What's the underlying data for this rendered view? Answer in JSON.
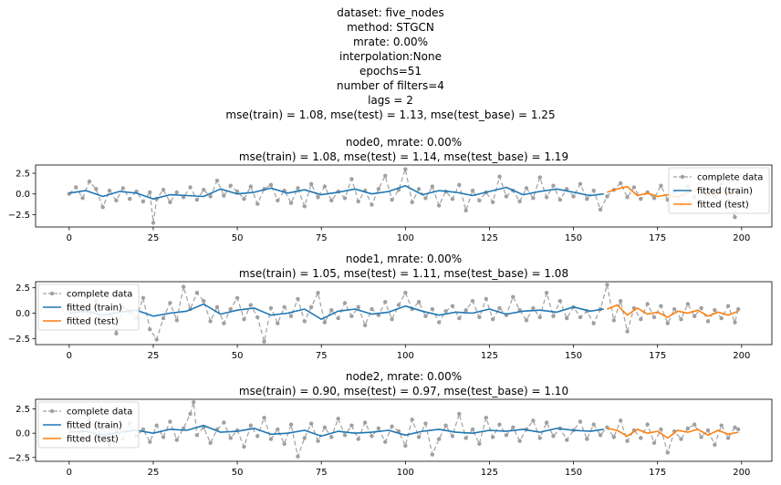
{
  "figure_title": [
    "dataset: five_nodes",
    "method: STGCN",
    "mrate: 0.00%",
    "interpolation:None",
    "epochs=51",
    "number of filters=4",
    "lags = 2",
    "mse(train) = 1.08, mse(test) = 1.13, mse(test_base) = 1.25"
  ],
  "colors": {
    "complete": "#a0a0a0",
    "train": "#1f77b4",
    "test": "#ff7f0e"
  },
  "chart_data": [
    {
      "type": "line",
      "title": [
        "node0, mrate: 0.00%",
        "mse(train) = 1.08, mse(test) = 1.14, mse(test_base) = 1.19"
      ],
      "xlim": [
        -10,
        209
      ],
      "ylim": [
        -4,
        3.5
      ],
      "xticks": [
        0,
        25,
        50,
        75,
        100,
        125,
        150,
        175,
        200
      ],
      "yticks": [
        2.5,
        0.0,
        -2.5
      ],
      "ytick_labels": [
        "2.5",
        "0.0",
        "−2.5"
      ],
      "legend": {
        "loc": "upper right",
        "labels": [
          "complete data",
          "fitted (train)",
          "fitted (test)"
        ]
      },
      "series": [
        {
          "name": "complete data",
          "style": "dashed-marker",
          "x": [
            0,
            2,
            4,
            6,
            8,
            10,
            12,
            14,
            16,
            18,
            20,
            22,
            24,
            25,
            26,
            28,
            30,
            32,
            34,
            36,
            38,
            40,
            42,
            44,
            46,
            48,
            50,
            52,
            54,
            56,
            58,
            60,
            62,
            64,
            66,
            68,
            70,
            72,
            74,
            76,
            78,
            80,
            82,
            84,
            86,
            88,
            90,
            92,
            94,
            96,
            98,
            100,
            102,
            104,
            106,
            108,
            110,
            112,
            114,
            116,
            118,
            120,
            122,
            124,
            126,
            128,
            130,
            132,
            134,
            136,
            138,
            140,
            142,
            144,
            146,
            148,
            150,
            152,
            154,
            156,
            158,
            160,
            162,
            164,
            166,
            168,
            170,
            172,
            174,
            176,
            178,
            180,
            182,
            184,
            186,
            188,
            190,
            192,
            194,
            196,
            198,
            199
          ],
          "y": [
            0.0,
            0.8,
            -0.5,
            1.5,
            0.6,
            -1.6,
            0.4,
            -0.8,
            0.7,
            -0.6,
            0.3,
            -0.9,
            0.2,
            -3.5,
            -0.6,
            0.5,
            -1.0,
            0.2,
            -0.4,
            0.8,
            -0.7,
            0.5,
            -0.3,
            1.6,
            -0.2,
            1.0,
            0.3,
            -0.6,
            0.9,
            -1.2,
            0.6,
            1.1,
            -0.8,
            0.4,
            -1.1,
            0.7,
            -1.5,
            1.2,
            -0.4,
            0.9,
            -0.8,
            0.3,
            -0.5,
            1.8,
            -0.9,
            0.4,
            -1.3,
            0.6,
            2.2,
            -0.7,
            0.5,
            3.0,
            -1.0,
            0.6,
            -0.5,
            0.9,
            -1.4,
            0.3,
            -0.6,
            1.1,
            -2.0,
            0.4,
            -0.8,
            0.2,
            -1.0,
            2.1,
            -0.3,
            0.4,
            -0.9,
            0.7,
            -0.5,
            2.0,
            -0.4,
            1.0,
            -0.7,
            0.6,
            -0.3,
            1.2,
            -0.6,
            0.4,
            -1.9,
            -0.3,
            0.5,
            1.3,
            -0.4,
            0.8,
            -0.6,
            0.2,
            -0.5,
            1.0,
            -0.7,
            0.3,
            -1.2,
            0.9,
            -0.4,
            -1.5,
            0.4,
            -0.3,
            1.2,
            -0.8,
            -2.8,
            0.3
          ]
        },
        {
          "name": "fitted (train)",
          "style": "solid",
          "x": [
            0,
            5,
            10,
            15,
            20,
            25,
            30,
            35,
            40,
            45,
            50,
            55,
            60,
            65,
            70,
            75,
            80,
            85,
            90,
            95,
            100,
            105,
            110,
            115,
            120,
            125,
            130,
            135,
            140,
            145,
            150,
            155,
            159
          ],
          "y": [
            0.1,
            0.4,
            -0.3,
            0.3,
            0.1,
            -0.6,
            -0.1,
            -0.2,
            -0.3,
            0.6,
            0.0,
            0.2,
            0.7,
            0.1,
            0.5,
            -0.1,
            0.2,
            0.6,
            0.0,
            0.3,
            1.0,
            -0.1,
            0.4,
            0.2,
            -0.2,
            0.3,
            0.8,
            -0.1,
            0.3,
            0.6,
            0.2,
            -0.2,
            0.0
          ]
        },
        {
          "name": "fitted (test)",
          "style": "solid",
          "x": [
            160,
            163,
            166,
            169,
            172,
            175,
            178,
            181,
            184,
            187,
            190,
            193,
            196,
            199
          ],
          "y": [
            0.2,
            0.6,
            0.9,
            -0.2,
            0.1,
            -0.3,
            -0.1,
            -0.4,
            0.2,
            0.5,
            -0.2,
            0.3,
            0.1,
            0.3
          ]
        }
      ]
    },
    {
      "type": "line",
      "title": [
        "node1, mrate: 0.00%",
        "mse(train) = 1.05, mse(test) = 1.11, mse(test_base) = 1.08"
      ],
      "xlim": [
        -10,
        209
      ],
      "ylim": [
        -3.1,
        3.1
      ],
      "xticks": [
        0,
        25,
        50,
        75,
        100,
        125,
        150,
        175,
        200
      ],
      "yticks": [
        2.5,
        0.0,
        -2.5
      ],
      "ytick_labels": [
        "2.5",
        "0.0",
        "−2.5"
      ],
      "legend": {
        "loc": "upper left",
        "labels": [
          "complete data",
          "fitted (train)",
          "fitted (test)"
        ]
      },
      "series": [
        {
          "name": "complete data",
          "style": "dashed-marker",
          "x": [
            0,
            2,
            4,
            6,
            8,
            10,
            12,
            14,
            16,
            18,
            20,
            22,
            24,
            26,
            28,
            30,
            32,
            34,
            36,
            38,
            40,
            42,
            44,
            46,
            48,
            50,
            52,
            54,
            56,
            58,
            60,
            62,
            64,
            66,
            68,
            70,
            72,
            74,
            76,
            78,
            80,
            82,
            84,
            86,
            88,
            90,
            92,
            94,
            96,
            98,
            100,
            102,
            104,
            106,
            108,
            110,
            112,
            114,
            116,
            118,
            120,
            122,
            124,
            126,
            128,
            130,
            132,
            134,
            136,
            138,
            140,
            142,
            144,
            146,
            148,
            150,
            152,
            154,
            156,
            158,
            160,
            162,
            164,
            166,
            168,
            170,
            172,
            174,
            176,
            178,
            180,
            182,
            184,
            186,
            188,
            190,
            192,
            194,
            196,
            198,
            199
          ],
          "y": [
            0.3,
            -0.4,
            0.8,
            -0.6,
            1.2,
            -0.9,
            0.5,
            -2.0,
            0.6,
            0.2,
            -0.5,
            1.5,
            -1.6,
            -2.6,
            -0.5,
            1.0,
            -0.7,
            2.6,
            0.4,
            2.0,
            1.2,
            -0.8,
            0.6,
            -1.0,
            0.4,
            1.5,
            -0.6,
            0.8,
            -0.4,
            -2.8,
            0.5,
            -1.0,
            0.6,
            -0.3,
            1.4,
            -0.8,
            0.6,
            2.0,
            -0.9,
            0.3,
            -0.5,
            1.0,
            -0.3,
            0.6,
            -1.2,
            0.4,
            -0.2,
            1.1,
            -0.6,
            0.8,
            2.0,
            0.4,
            1.1,
            -0.3,
            0.4,
            -0.9,
            0.2,
            0.7,
            -0.5,
            0.3,
            1.2,
            -0.4,
            1.4,
            -0.6,
            0.5,
            -0.2,
            1.6,
            0.3,
            -0.7,
            0.5,
            -0.4,
            2.0,
            -0.3,
            1.2,
            -0.5,
            0.6,
            -0.4,
            0.2,
            -1.0,
            0.4,
            2.8,
            -0.7,
            1.2,
            -1.8,
            0.5,
            -0.6,
            0.9,
            -0.4,
            0.7,
            -1.0,
            0.4,
            -0.6,
            0.9,
            -0.3,
            0.5,
            -0.8,
            0.3,
            -0.5,
            0.7,
            -0.9,
            0.4
          ]
        },
        {
          "name": "fitted (train)",
          "style": "solid",
          "x": [
            0,
            5,
            10,
            15,
            20,
            25,
            30,
            35,
            40,
            45,
            50,
            55,
            60,
            65,
            70,
            75,
            80,
            85,
            90,
            95,
            100,
            105,
            110,
            115,
            120,
            125,
            130,
            135,
            140,
            145,
            150,
            155,
            159
          ],
          "y": [
            0.0,
            0.2,
            -0.2,
            0.1,
            0.3,
            -0.3,
            0.0,
            0.2,
            0.9,
            -0.1,
            0.3,
            0.5,
            -0.2,
            0.0,
            0.4,
            -0.6,
            0.2,
            0.4,
            -0.1,
            0.1,
            0.7,
            0.2,
            -0.2,
            0.1,
            0.0,
            0.4,
            -0.1,
            0.2,
            0.3,
            0.1,
            0.6,
            0.2,
            0.4
          ]
        },
        {
          "name": "fitted (test)",
          "style": "solid",
          "x": [
            160,
            163,
            166,
            169,
            172,
            175,
            178,
            181,
            184,
            187,
            190,
            193,
            196,
            199
          ],
          "y": [
            0.4,
            0.8,
            -0.2,
            0.5,
            -0.1,
            0.1,
            -0.4,
            0.2,
            0.0,
            0.3,
            -0.3,
            0.1,
            -0.2,
            0.2
          ]
        }
      ]
    },
    {
      "type": "line",
      "title": [
        "node2, mrate: 0.00%",
        "mse(train) = 0.90, mse(test) = 0.97, mse(test_base) = 1.10"
      ],
      "xlim": [
        -10,
        209
      ],
      "ylim": [
        -2.9,
        3.5
      ],
      "xticks": [
        0,
        25,
        50,
        75,
        100,
        125,
        150,
        175,
        200
      ],
      "yticks": [
        2.5,
        0.0,
        -2.5
      ],
      "ytick_labels": [
        "2.5",
        "0.0",
        "−2.5"
      ],
      "legend": {
        "loc": "upper left",
        "labels": [
          "complete data",
          "fitted (train)",
          "fitted (test)"
        ]
      },
      "series": [
        {
          "name": "complete data",
          "style": "dashed-marker",
          "x": [
            0,
            2,
            4,
            6,
            8,
            10,
            12,
            14,
            16,
            18,
            20,
            22,
            24,
            26,
            28,
            30,
            32,
            34,
            36,
            37,
            38,
            40,
            42,
            44,
            46,
            48,
            50,
            52,
            54,
            56,
            58,
            60,
            62,
            64,
            66,
            68,
            70,
            72,
            74,
            76,
            78,
            80,
            82,
            84,
            86,
            88,
            90,
            92,
            94,
            96,
            98,
            100,
            102,
            104,
            106,
            108,
            110,
            112,
            114,
            116,
            118,
            120,
            122,
            124,
            126,
            128,
            130,
            132,
            134,
            136,
            138,
            140,
            142,
            144,
            146,
            148,
            150,
            152,
            154,
            156,
            158,
            160,
            162,
            164,
            166,
            168,
            170,
            172,
            174,
            176,
            178,
            180,
            182,
            184,
            186,
            188,
            190,
            192,
            194,
            196,
            198,
            199
          ],
          "y": [
            0.5,
            -0.8,
            0.9,
            1.5,
            -0.4,
            0.6,
            -1.2,
            0.3,
            -0.6,
            1.0,
            -0.3,
            0.4,
            -0.9,
            0.8,
            -0.4,
            1.2,
            -0.7,
            0.5,
            2.0,
            3.2,
            -0.2,
            0.6,
            -1.0,
            0.4,
            1.1,
            -0.5,
            0.3,
            -1.4,
            0.8,
            -0.3,
            1.6,
            -0.6,
            0.4,
            -1.1,
            0.9,
            -2.4,
            -0.5,
            1.0,
            -0.8,
            0.6,
            -0.4,
            1.5,
            -0.2,
            0.8,
            -0.6,
            1.1,
            -0.3,
            0.5,
            -0.9,
            0.7,
            0.2,
            -1.3,
            1.4,
            -0.4,
            1.0,
            -2.2,
            -0.6,
            0.8,
            -0.3,
            2.0,
            -0.5,
            0.4,
            -1.1,
            1.6,
            -0.4,
            0.9,
            -0.2,
            0.6,
            -0.8,
            0.4,
            1.3,
            -0.5,
            1.1,
            -0.3,
            0.5,
            -0.7,
            0.3,
            1.2,
            -0.6,
            0.9,
            -0.2,
            0.6,
            -0.4,
            1.3,
            -0.8,
            0.3,
            -0.5,
            0.9,
            -1.0,
            0.4,
            -2.0,
            0.2,
            -0.6,
            0.5,
            0.9,
            -0.4,
            0.3,
            -1.2,
            0.8,
            -0.5,
            0.6,
            0.4
          ]
        },
        {
          "name": "fitted (train)",
          "style": "solid",
          "x": [
            0,
            5,
            10,
            15,
            20,
            25,
            30,
            35,
            40,
            45,
            50,
            55,
            60,
            65,
            70,
            75,
            80,
            85,
            90,
            95,
            100,
            105,
            110,
            115,
            120,
            125,
            130,
            135,
            140,
            145,
            150,
            155,
            159
          ],
          "y": [
            0.1,
            0.2,
            -0.2,
            0.1,
            0.3,
            0.0,
            0.4,
            0.3,
            0.8,
            0.1,
            0.2,
            0.5,
            -0.1,
            0.0,
            0.3,
            -0.3,
            0.2,
            0.0,
            0.1,
            0.3,
            -0.2,
            0.2,
            0.4,
            0.1,
            0.0,
            0.3,
            0.2,
            0.4,
            0.1,
            0.5,
            0.3,
            0.2,
            0.4
          ]
        },
        {
          "name": "fitted (test)",
          "style": "solid",
          "x": [
            160,
            163,
            166,
            169,
            172,
            175,
            178,
            181,
            184,
            187,
            190,
            193,
            196,
            199
          ],
          "y": [
            0.5,
            0.3,
            -0.3,
            0.4,
            0.0,
            0.2,
            -0.5,
            0.3,
            0.1,
            0.4,
            -0.2,
            0.3,
            -0.1,
            0.1
          ]
        }
      ]
    }
  ]
}
